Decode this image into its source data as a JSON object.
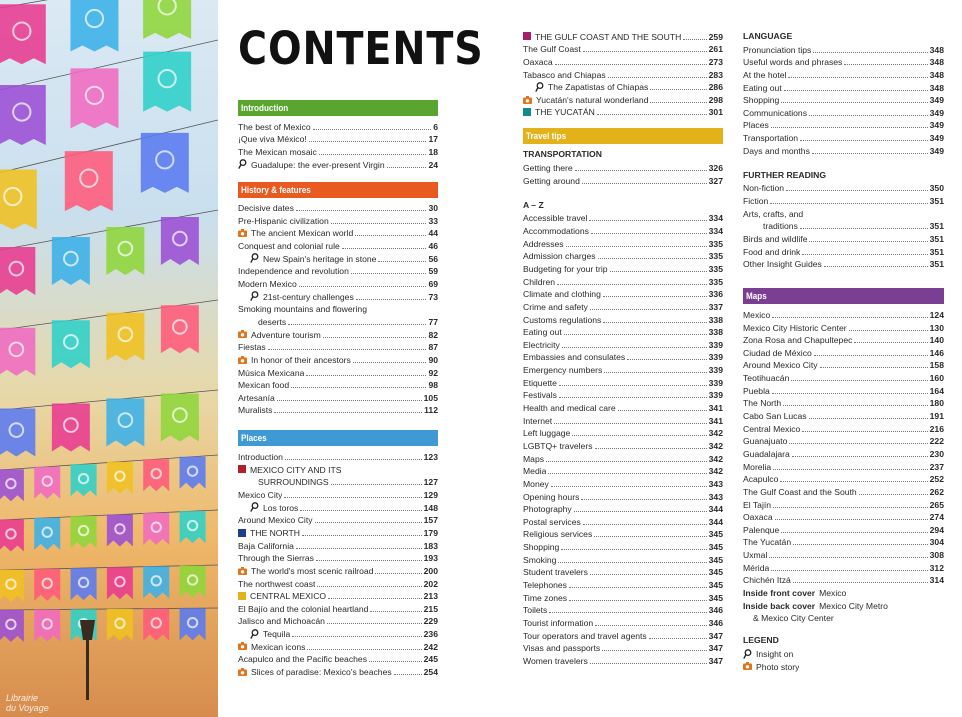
{
  "title": "CONTENTS",
  "watermark": [
    "Librairie",
    "du Voyage"
  ],
  "colors": {
    "introduction": "#5aa530",
    "history": "#e85a1f",
    "places": "#3f9ad4",
    "travel_tips": "#e3b119",
    "maps": "#7a3e93",
    "mexico_city": "#b01f2a",
    "north": "#1d3f8a",
    "central": "#e3b119",
    "gulf": "#a31f6a",
    "yucatan": "#12898a",
    "photo_icon": "#e0751d"
  },
  "left_col": {
    "sections": [
      {
        "label": "Introduction",
        "color": "introduction",
        "items": [
          {
            "label": "The best of Mexico",
            "page": "6"
          },
          {
            "label": "¡Que viva México!",
            "page": "17"
          },
          {
            "label": "The Mexican mosaic",
            "page": "18"
          },
          {
            "label": "Guadalupe: the ever-present Virgin",
            "page": "24",
            "icon": "pin"
          }
        ]
      },
      {
        "label": "History & features",
        "color": "history",
        "items": [
          {
            "label": "Decisive dates",
            "page": "30"
          },
          {
            "label": "Pre-Hispanic civilization",
            "page": "33"
          },
          {
            "label": "The ancient Mexican world",
            "page": "44",
            "icon": "camera"
          },
          {
            "label": "Conquest and colonial rule",
            "page": "46"
          },
          {
            "label": "New Spain's heritage in stone",
            "page": "56",
            "icon": "pin",
            "indent": true
          },
          {
            "label": "Independence and revolution",
            "page": "59"
          },
          {
            "label": "Modern Mexico",
            "page": "69"
          },
          {
            "label": "21st-century challenges",
            "page": "73",
            "icon": "pin",
            "indent": true
          },
          {
            "label": "Smoking mountains and flowering",
            "page": ""
          },
          {
            "label": "deserts",
            "page": "77",
            "cont": true
          },
          {
            "label": "Adventure tourism",
            "page": "82",
            "icon": "camera"
          },
          {
            "label": "Fiestas",
            "page": "87"
          },
          {
            "label": "In honor of their ancestors",
            "page": "90",
            "icon": "camera"
          },
          {
            "label": "Música Mexicana",
            "page": "92"
          },
          {
            "label": "Mexican food",
            "page": "98"
          },
          {
            "label": "Artesanía",
            "page": "105"
          },
          {
            "label": "Muralists",
            "page": "112"
          }
        ]
      },
      {
        "label": "Places",
        "color": "places",
        "items": [
          {
            "label": "Introduction",
            "page": "123"
          },
          {
            "label": "MEXICO CITY AND ITS",
            "page": "",
            "icon": "sq-mexico_city"
          },
          {
            "label": "SURROUNDINGS",
            "page": "127",
            "cont": true
          },
          {
            "label": "Mexico City",
            "page": "129"
          },
          {
            "label": "Los toros",
            "page": "148",
            "icon": "pin",
            "indent": true
          },
          {
            "label": "Around Mexico City",
            "page": "157"
          },
          {
            "label": "THE NORTH",
            "page": "179",
            "icon": "sq-north"
          },
          {
            "label": "Baja California",
            "page": "183"
          },
          {
            "label": "Through the Sierras",
            "page": "193"
          },
          {
            "label": "The world's most scenic railroad",
            "page": "200",
            "icon": "camera"
          },
          {
            "label": "The northwest coast",
            "page": "202"
          },
          {
            "label": "CENTRAL MEXICO",
            "page": "213",
            "icon": "sq-central"
          },
          {
            "label": "El Bajío and the colonial heartland",
            "page": "215"
          },
          {
            "label": "Jalisco and Michoacán",
            "page": "229"
          },
          {
            "label": "Tequila",
            "page": "236",
            "icon": "pin",
            "indent": true
          },
          {
            "label": "Mexican icons",
            "page": "242",
            "icon": "camera"
          },
          {
            "label": "Acapulco and the Pacific beaches",
            "page": "245"
          },
          {
            "label": "Slices of paradise: Mexico's beaches",
            "page": "254",
            "icon": "camera"
          }
        ]
      }
    ]
  },
  "mid_col": {
    "top_items": [
      {
        "label": "THE GULF COAST AND THE SOUTH",
        "page": "259",
        "icon": "sq-gulf"
      },
      {
        "label": "The Gulf Coast",
        "page": "261"
      },
      {
        "label": "Oaxaca",
        "page": "273"
      },
      {
        "label": "Tabasco and Chiapas",
        "page": "283"
      },
      {
        "label": "The Zapatistas of Chiapas",
        "page": "286",
        "icon": "pin",
        "indent": true
      },
      {
        "label": "Yucatán's natural wonderland",
        "page": "298",
        "icon": "camera"
      },
      {
        "label": "THE YUCATÁN",
        "page": "301",
        "icon": "sq-yucatan"
      }
    ],
    "travel_tips": "Travel tips",
    "transportation_head": "TRANSPORTATION",
    "transportation": [
      {
        "label": "Getting there",
        "page": "326"
      },
      {
        "label": "Getting around",
        "page": "327"
      }
    ],
    "az_head": "A – Z",
    "az": [
      {
        "label": "Accessible travel",
        "page": "334"
      },
      {
        "label": "Accommodations",
        "page": "334"
      },
      {
        "label": "Addresses",
        "page": "335"
      },
      {
        "label": "Admission charges",
        "page": "335"
      },
      {
        "label": "Budgeting for your trip",
        "page": "335"
      },
      {
        "label": "Children",
        "page": "335"
      },
      {
        "label": "Climate and clothing",
        "page": "336"
      },
      {
        "label": "Crime and safety",
        "page": "337"
      },
      {
        "label": "Customs regulations",
        "page": "338"
      },
      {
        "label": "Eating out",
        "page": "338"
      },
      {
        "label": "Electricity",
        "page": "339"
      },
      {
        "label": "Embassies and consulates",
        "page": "339"
      },
      {
        "label": "Emergency numbers",
        "page": "339"
      },
      {
        "label": "Etiquette",
        "page": "339"
      },
      {
        "label": "Festivals",
        "page": "339"
      },
      {
        "label": "Health and medical care",
        "page": "341"
      },
      {
        "label": "Internet",
        "page": "341"
      },
      {
        "label": "Left luggage",
        "page": "342"
      },
      {
        "label": "LGBTQ+ travelers",
        "page": "342"
      },
      {
        "label": "Maps",
        "page": "342"
      },
      {
        "label": "Media",
        "page": "342"
      },
      {
        "label": "Money",
        "page": "343"
      },
      {
        "label": "Opening hours",
        "page": "343"
      },
      {
        "label": "Photography",
        "page": "344"
      },
      {
        "label": "Postal services",
        "page": "344"
      },
      {
        "label": "Religious services",
        "page": "345"
      },
      {
        "label": "Shopping",
        "page": "345"
      },
      {
        "label": "Smoking",
        "page": "345"
      },
      {
        "label": "Student travelers",
        "page": "345"
      },
      {
        "label": "Telephones",
        "page": "345"
      },
      {
        "label": "Time zones",
        "page": "345"
      },
      {
        "label": "Toilets",
        "page": "346"
      },
      {
        "label": "Tourist information",
        "page": "346"
      },
      {
        "label": "Tour operators and travel agents",
        "page": "347"
      },
      {
        "label": "Visas and passports",
        "page": "347"
      },
      {
        "label": "Women travelers",
        "page": "347"
      }
    ]
  },
  "right_col": {
    "language_head": "LANGUAGE",
    "language": [
      {
        "label": "Pronunciation tips",
        "page": "348"
      },
      {
        "label": "Useful words and phrases",
        "page": "348"
      },
      {
        "label": "At the hotel",
        "page": "348"
      },
      {
        "label": "Eating out",
        "page": "348"
      },
      {
        "label": "Shopping",
        "page": "349"
      },
      {
        "label": "Communications",
        "page": "349"
      },
      {
        "label": "Places",
        "page": "349"
      },
      {
        "label": "Transportation",
        "page": "349"
      },
      {
        "label": "Days and months",
        "page": "349"
      }
    ],
    "reading_head": "FURTHER READING",
    "reading": [
      {
        "label": "Non-fiction",
        "page": "350"
      },
      {
        "label": "Fiction",
        "page": "351"
      },
      {
        "label": "Arts, crafts, and",
        "page": ""
      },
      {
        "label": "traditions",
        "page": "351",
        "cont": true
      },
      {
        "label": "Birds and wildlife",
        "page": "351"
      },
      {
        "label": "Food and drink",
        "page": "351"
      },
      {
        "label": "Other Insight Guides",
        "page": "351"
      }
    ],
    "maps_head": "Maps",
    "maps": [
      {
        "label": "Mexico",
        "page": "124"
      },
      {
        "label": "Mexico City Historic Center",
        "page": "130"
      },
      {
        "label": "Zona Rosa and Chapultepec",
        "page": "140"
      },
      {
        "label": "Ciudad de México",
        "page": "146"
      },
      {
        "label": "Around Mexico City",
        "page": "158"
      },
      {
        "label": "Teotihuacán",
        "page": "160"
      },
      {
        "label": "Puebla",
        "page": "164"
      },
      {
        "label": "The North",
        "page": "180"
      },
      {
        "label": "Cabo San Lucas",
        "page": "191"
      },
      {
        "label": "Central Mexico",
        "page": "216"
      },
      {
        "label": "Guanajuato",
        "page": "222"
      },
      {
        "label": "Guadalajara",
        "page": "230"
      },
      {
        "label": "Morelia",
        "page": "237"
      },
      {
        "label": "Acapulco",
        "page": "252"
      },
      {
        "label": "The Gulf Coast and the South",
        "page": "262"
      },
      {
        "label": "El Tajín",
        "page": "265"
      },
      {
        "label": "Oaxaca",
        "page": "274"
      },
      {
        "label": "Palenque",
        "page": "294"
      },
      {
        "label": "The Yucatán",
        "page": "304"
      },
      {
        "label": "Uxmal",
        "page": "308"
      },
      {
        "label": "Mérida",
        "page": "312"
      },
      {
        "label": "Chichén Itzá",
        "page": "314"
      }
    ],
    "inside_front_bold": "Inside front cover",
    "inside_front_text": "Mexico",
    "inside_back_bold": "Inside back cover",
    "inside_back_text": "Mexico City Metro",
    "inside_back_text2": "& Mexico City Center",
    "legend_head": "LEGEND",
    "legend": [
      {
        "label": "Insight on",
        "icon": "pin"
      },
      {
        "label": "Photo story",
        "icon": "camera"
      }
    ]
  }
}
